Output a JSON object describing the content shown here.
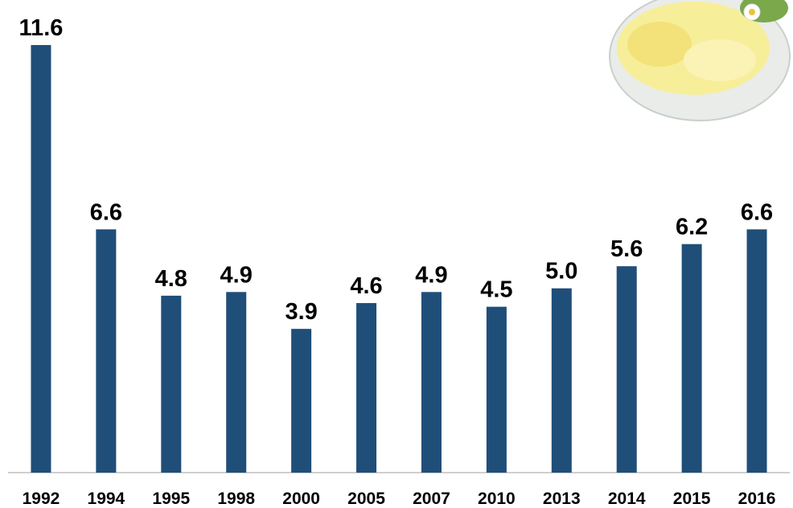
{
  "chart_data": {
    "type": "bar",
    "categories": [
      "1992",
      "1994",
      "1995",
      "1998",
      "2000",
      "2005",
      "2007",
      "2010",
      "2013",
      "2014",
      "2015",
      "2016"
    ],
    "values": [
      11.6,
      6.6,
      4.8,
      4.9,
      3.9,
      4.6,
      4.9,
      4.5,
      5.0,
      5.6,
      6.2,
      6.6
    ],
    "value_labels": [
      "11.6",
      "6.6",
      "4.8",
      "4.9",
      "3.9",
      "4.6",
      "4.9",
      "4.5",
      "5.0",
      "5.6",
      "6.2",
      "6.6"
    ],
    "color": "#1f4e79",
    "ylim": [
      0,
      12
    ]
  }
}
